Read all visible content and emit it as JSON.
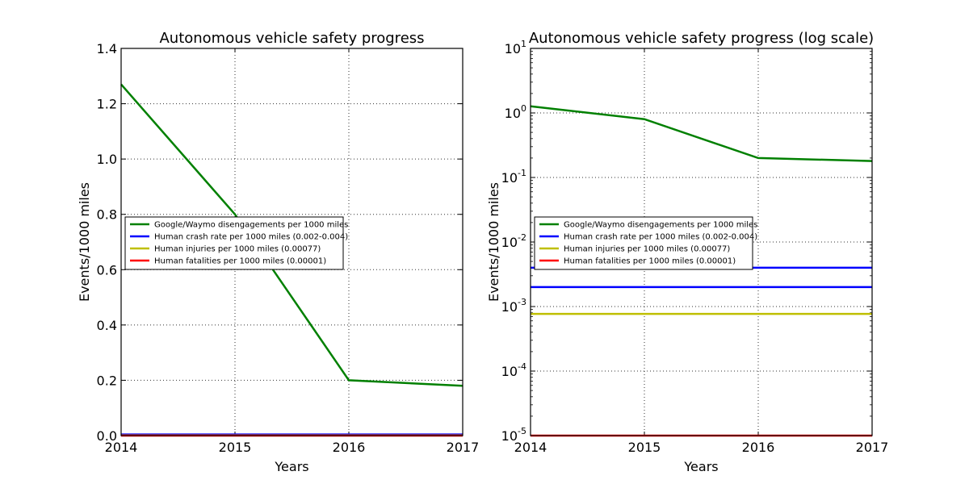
{
  "chart_data": [
    {
      "type": "line",
      "title": "Autonomous vehicle safety progress",
      "xlabel": "Years",
      "ylabel": "Events/1000 miles",
      "xlim": [
        2014,
        2017
      ],
      "ylim": [
        0,
        1.4
      ],
      "yscale": "linear",
      "grid": true,
      "legend_position": "center-left",
      "x_ticks": [
        "2014",
        "2015",
        "2016",
        "2017"
      ],
      "y_ticks": [
        "0.0",
        "0.2",
        "0.4",
        "0.6",
        "0.8",
        "1.0",
        "1.2",
        "1.4"
      ],
      "series": [
        {
          "name": "Google/Waymo disengagements per 1000 miles",
          "color": "#008000",
          "x": [
            2014,
            2015,
            2016,
            2017
          ],
          "y": [
            1.27,
            0.8,
            0.2,
            0.18
          ]
        },
        {
          "name": "Human crash rate per 1000 miles (0.002-0.004)",
          "color": "#0000ff",
          "x": [
            2014,
            2017
          ],
          "y": [
            0.004,
            0.004
          ],
          "legend": true
        },
        {
          "name": "Human crash rate per 1000 miles (0.002-0.004)",
          "color": "#0000ff",
          "x": [
            2014,
            2017
          ],
          "y": [
            0.002,
            0.002
          ],
          "legend": false
        },
        {
          "name": "Human injuries per 1000 miles (0.00077)",
          "color": "#bfbf00",
          "x": [
            2014,
            2017
          ],
          "y": [
            0.00077,
            0.00077
          ],
          "legend": true
        },
        {
          "name": "Human fatalities per 1000 miles (0.00001)",
          "color": "#ff0000",
          "x": [
            2014,
            2017
          ],
          "y": [
            1e-05,
            1e-05
          ],
          "legend": true
        }
      ]
    },
    {
      "type": "line",
      "title": "Autonomous vehicle safety progress (log scale)",
      "xlabel": "Years",
      "ylabel": "Events/1000 miles",
      "xlim": [
        2014,
        2017
      ],
      "ylim": [
        1e-05,
        10
      ],
      "yscale": "log",
      "grid": true,
      "legend_position": "center-left",
      "x_ticks": [
        "2014",
        "2015",
        "2016",
        "2017"
      ],
      "y_ticks_exponent": [
        "-5",
        "-4",
        "-3",
        "-2",
        "-1",
        "0",
        "1"
      ],
      "series": [
        {
          "name": "Google/Waymo disengagements per 1000 miles",
          "color": "#008000",
          "x": [
            2014,
            2015,
            2016,
            2017
          ],
          "y": [
            1.27,
            0.8,
            0.2,
            0.18
          ]
        },
        {
          "name": "Human crash rate per 1000 miles (0.002-0.004)",
          "color": "#0000ff",
          "x": [
            2014,
            2017
          ],
          "y": [
            0.004,
            0.004
          ],
          "legend": true
        },
        {
          "name": "Human crash rate per 1000 miles (0.002-0.004)",
          "color": "#0000ff",
          "x": [
            2014,
            2017
          ],
          "y": [
            0.002,
            0.002
          ],
          "legend": false
        },
        {
          "name": "Human injuries per 1000 miles (0.00077)",
          "color": "#bfbf00",
          "x": [
            2014,
            2017
          ],
          "y": [
            0.00077,
            0.00077
          ],
          "legend": true
        },
        {
          "name": "Human fatalities per 1000 miles (0.00001)",
          "color": "#ff0000",
          "x": [
            2014,
            2017
          ],
          "y": [
            1e-05,
            1e-05
          ],
          "legend": true
        }
      ]
    }
  ]
}
